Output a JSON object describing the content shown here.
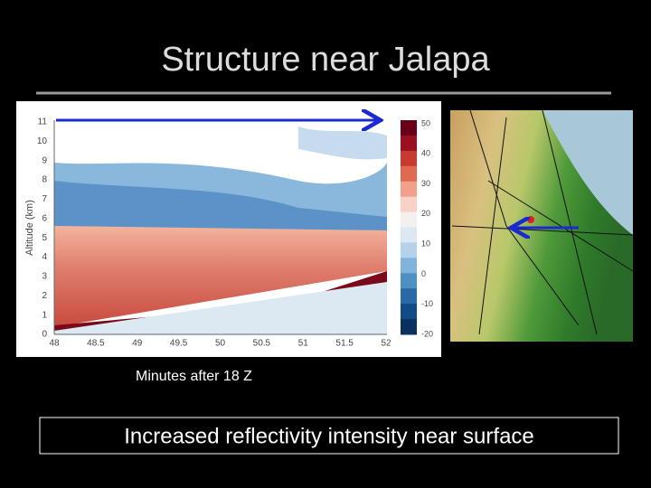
{
  "header": {
    "title": "Structure near Jalapa"
  },
  "plot": {
    "y_label": "Altitude (km)",
    "y_ticks": [
      "0",
      "1",
      "2",
      "3",
      "4",
      "5",
      "6",
      "7",
      "8",
      "9",
      "10",
      "11"
    ],
    "x_ticks": [
      "48",
      "48.5",
      "49",
      "49.5",
      "50",
      "50.5",
      "51",
      "51.5",
      "52"
    ],
    "colorbar_ticks": [
      "50",
      "40",
      "30",
      "20",
      "10",
      "0",
      "-10",
      "-20"
    ],
    "x_label": "Minutes after 18 Z"
  },
  "caption": "Increased reflectivity intensity near surface"
}
